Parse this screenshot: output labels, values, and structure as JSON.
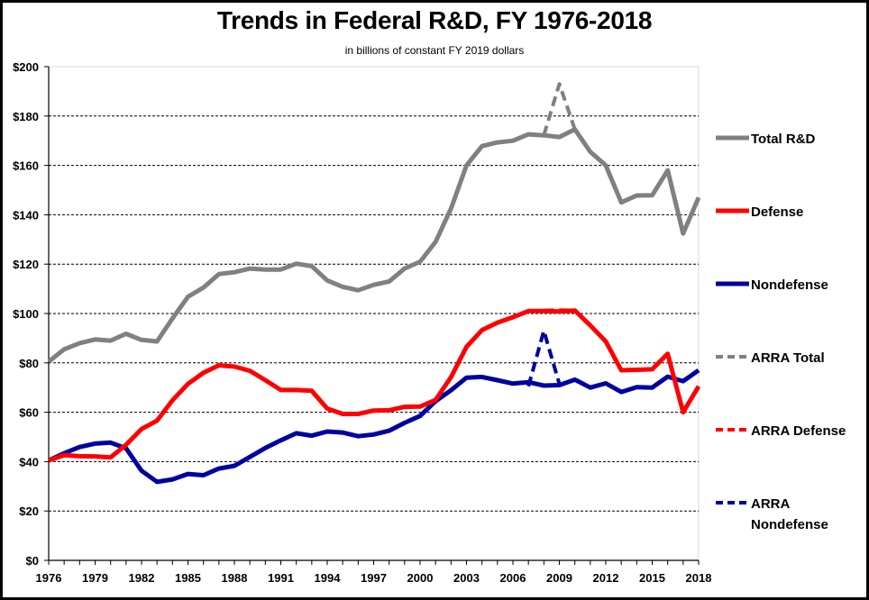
{
  "chart_data": {
    "type": "line",
    "title": "Trends in Federal R&D, FY 1976-2018",
    "subtitle": "in billions of constant FY 2019 dollars",
    "xlabel": "",
    "ylabel": "",
    "ylim": [
      0,
      200
    ],
    "xlim": [
      1976,
      2018
    ],
    "grid": "horizontal dashed",
    "legend_position": "right",
    "y_ticks": [
      0,
      20,
      40,
      60,
      80,
      100,
      120,
      140,
      160,
      180,
      200
    ],
    "y_tick_labels": [
      "$0",
      "$20",
      "$40",
      "$60",
      "$80",
      "$100",
      "$120",
      "$140",
      "$160",
      "$180",
      "$200"
    ],
    "x_tick_labels": [
      "1976",
      "1979",
      "1982",
      "1985",
      "1988",
      "1991",
      "1994",
      "1997",
      "2000",
      "2003",
      "2006",
      "2009",
      "2012",
      "2015",
      "2018"
    ],
    "x": [
      1976,
      1977,
      1978,
      1979,
      1980,
      1981,
      1982,
      1983,
      1984,
      1985,
      1986,
      1987,
      1988,
      1989,
      1990,
      1991,
      1992,
      1993,
      1994,
      1995,
      1996,
      1997,
      1998,
      1999,
      2000,
      2001,
      2002,
      2003,
      2004,
      2005,
      2006,
      2007,
      2008,
      2009,
      2010,
      2011,
      2012,
      2013,
      2014,
      2015,
      2016,
      2017,
      2018
    ],
    "series": [
      {
        "name": "Total R&D",
        "color": "#808080",
        "dashed": false,
        "values": [
          80.5,
          85.5,
          88,
          89.5,
          89,
          91.8,
          89.3,
          88.7,
          98,
          106.8,
          110.5,
          116,
          116.7,
          118.2,
          117.8,
          117.8,
          120.2,
          119.2,
          113.4,
          110.8,
          109.4,
          111.6,
          113,
          118.2,
          121,
          129,
          142.5,
          160,
          167.8,
          169.3,
          170,
          172.6,
          172.2,
          171.5,
          174.6,
          165.5,
          160,
          145,
          147.8,
          147.9,
          158,
          132.4,
          147
        ]
      },
      {
        "name": "Defense",
        "color": "#ff0000",
        "dashed": false,
        "values": [
          40.5,
          42.6,
          42.2,
          42.1,
          41.7,
          46.8,
          53.2,
          56.6,
          64.8,
          71.5,
          76,
          79,
          78.5,
          76.8,
          73,
          69,
          69,
          68.7,
          61.5,
          59.3,
          59.3,
          60.7,
          60.8,
          62.2,
          62.3,
          65,
          74.2,
          86.5,
          93.3,
          96.3,
          98.5,
          101,
          101,
          100.8,
          101.2,
          95.2,
          88.7,
          77,
          77.2,
          77.4,
          83.7,
          60,
          70.5
        ]
      },
      {
        "name": "Nondefense",
        "color": "#0000a0",
        "dashed": false,
        "values": [
          40.5,
          43.4,
          45.9,
          47.3,
          47.7,
          45.4,
          36.3,
          31.8,
          32.8,
          35,
          34.5,
          37.2,
          38.3,
          41.9,
          45.5,
          48.6,
          51.5,
          50.5,
          52.2,
          51.8,
          50.3,
          51,
          52.5,
          55.7,
          58.5,
          64.5,
          68.9,
          74,
          74.3,
          73,
          71.6,
          72.2,
          70.8,
          71,
          73.2,
          70,
          71.7,
          68.2,
          70.2,
          70,
          74.4,
          72.6,
          77
        ]
      },
      {
        "name": "ARRA Total",
        "color": "#808080",
        "dashed": true,
        "points": [
          [
            2008,
            172.2
          ],
          [
            2009,
            193
          ],
          [
            2010,
            174.6
          ]
        ]
      },
      {
        "name": "ARRA Defense",
        "color": "#ff0000",
        "dashed": true,
        "points": [
          [
            2008,
            101.2
          ],
          [
            2009,
            101.4
          ],
          [
            2010,
            101.2
          ]
        ]
      },
      {
        "name": "ARRA Nondefense",
        "color": "#0000a0",
        "dashed": true,
        "points": [
          [
            2007,
            70.5
          ],
          [
            2008,
            93
          ],
          [
            2009,
            71.5
          ]
        ]
      }
    ],
    "legend": [
      {
        "label_lines": [
          "Total R&D"
        ],
        "color": "#808080",
        "dashed": false
      },
      {
        "label_lines": [
          "Defense"
        ],
        "color": "#ff0000",
        "dashed": false
      },
      {
        "label_lines": [
          "Nondefense"
        ],
        "color": "#0000a0",
        "dashed": false
      },
      {
        "label_lines": [
          "ARRA Total"
        ],
        "color": "#808080",
        "dashed": true
      },
      {
        "label_lines": [
          "ARRA Defense"
        ],
        "color": "#ff0000",
        "dashed": true
      },
      {
        "label_lines": [
          "ARRA",
          "Nondefense"
        ],
        "color": "#0000a0",
        "dashed": true
      }
    ]
  }
}
